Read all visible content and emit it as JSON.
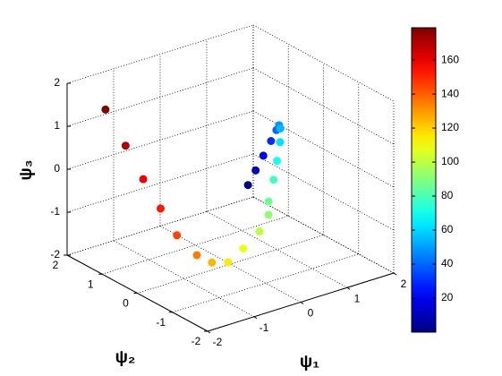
{
  "chart_data": {
    "type": "scatter3d",
    "xlabel": "ψ₁",
    "ylabel": "ψ₂",
    "zlabel": "ψ₃",
    "x": [
      1.2,
      1.35,
      1.5,
      1.65,
      1.75,
      1.8,
      1.82,
      1.8,
      1.72,
      1.63,
      1.5,
      1.5,
      1.0,
      0.35,
      -0.3,
      -0.7,
      -1.0,
      -1.3,
      -1.5,
      -1.7,
      -1.8,
      -1.9
    ],
    "y": [
      1.09,
      1.07,
      1.05,
      1.03,
      1.01,
      1.0,
      0.99,
      0.97,
      0.95,
      0.93,
      0.9,
      0.9,
      0.5,
      0.1,
      -0.33,
      -0.4,
      -0.37,
      -0.2,
      0.0,
      0.23,
      0.6,
      1.04
    ],
    "z": [
      -1.05,
      -0.75,
      -0.45,
      -0.15,
      0.08,
      0.18,
      0.1,
      -0.2,
      -0.6,
      -1.0,
      -1.45,
      -1.76,
      -1.8,
      -1.8,
      -1.71,
      -1.55,
      -1.29,
      -0.8,
      -0.2,
      0.45,
      1.1,
      1.78
    ],
    "values": [
      1,
      10,
      20,
      30,
      40,
      48,
      55,
      62,
      70,
      78,
      86,
      92,
      100,
      108,
      115,
      125,
      135,
      145,
      153,
      160,
      170,
      180
    ],
    "colormap": "jet",
    "xlim": [
      -2,
      2
    ],
    "ylim": [
      -2,
      2
    ],
    "zlim": [
      -2,
      2
    ],
    "xticks": [
      -2,
      -1,
      0,
      1,
      2
    ],
    "yticks": [
      -2,
      -1,
      0,
      1,
      2
    ],
    "zticks": [
      -2,
      -1,
      0,
      1,
      2
    ],
    "clim": [
      0,
      179
    ],
    "cticks": [
      20,
      40,
      60,
      80,
      100,
      120,
      140,
      160
    ],
    "grid": true
  }
}
